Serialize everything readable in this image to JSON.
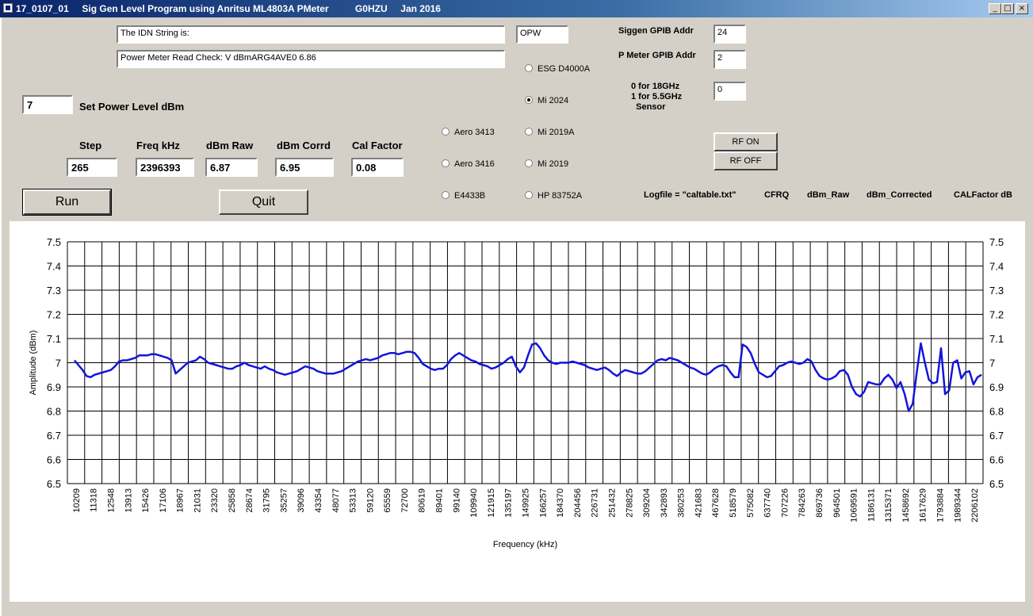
{
  "window": {
    "title": "17_0107_01     Sig Gen Level Program using Anritsu ML4803A PMeter          G0HZU     Jan 2016",
    "minimize": "_",
    "maximize": "□",
    "close": "×"
  },
  "idn_text": "The IDN String is:",
  "opw_text": "OPW",
  "pm_check_text": "Power Meter Read Check: V dBmARG4AVE0  6.86",
  "power_level": {
    "value": "7",
    "label": "Set Power Level dBm"
  },
  "readouts": {
    "step": {
      "label": "Step",
      "value": "265"
    },
    "freq": {
      "label": "Freq kHz",
      "value": "2396393"
    },
    "raw": {
      "label": "dBm Raw",
      "value": "6.87"
    },
    "corrd": {
      "label": "dBm Corrd",
      "value": "6.95"
    },
    "cal": {
      "label": "Cal Factor",
      "value": "0.08"
    }
  },
  "buttons": {
    "run": "Run",
    "quit": "Quit",
    "rf_on": "RF ON",
    "rf_off": "RF OFF"
  },
  "radios": {
    "esg": "ESG D4000A",
    "mi2024": "Mi 2024",
    "mi2019a": "Mi 2019A",
    "mi2019": "Mi 2019",
    "hp83752a": "HP 83752A",
    "aero3413": "Aero 3413",
    "aero3416": "Aero 3416",
    "e4433b": "E4433B",
    "selected": "Mi 2024"
  },
  "gpib": {
    "siggen_label": "Siggen GPIB Addr",
    "siggen_value": "24",
    "pmeter_label": "P Meter GPIB Addr",
    "pmeter_value": "2",
    "sensor_label": "0 for 18GHz\n1 for 5.5GHz\n  Sensor",
    "sensor_value": "0"
  },
  "logfile": {
    "text": "Logfile = \"caltable.txt\"",
    "cfrq": "CFRQ",
    "raw": "dBm_Raw",
    "corrected": "dBm_Corrected",
    "calfactor": "CALFactor dB"
  },
  "chart_data": {
    "type": "line",
    "xlabel": "Frequency (kHz)",
    "ylabel": "Amplitude (dBm)",
    "ylim": [
      6.5,
      7.5
    ],
    "yticks": [
      "7.5",
      "7.4",
      "7.3",
      "7.2",
      "7.1",
      "7",
      "6.9",
      "6.8",
      "6.7",
      "6.6",
      "6.5"
    ],
    "grid": true,
    "series_color": "#1414dc",
    "x_tick_labels": [
      "10209",
      "11318",
      "12548",
      "13913",
      "15426",
      "17106",
      "18967",
      "21031",
      "23320",
      "25858",
      "28674",
      "31795",
      "35257",
      "39096",
      "43354",
      "48077",
      "53313",
      "59120",
      "65559",
      "72700",
      "80619",
      "89401",
      "99140",
      "109940",
      "121915",
      "135197",
      "149925",
      "166257",
      "184370",
      "204456",
      "226731",
      "251432",
      "278825",
      "309204",
      "342893",
      "380253",
      "421683",
      "467628",
      "518579",
      "575082",
      "637740",
      "707226",
      "784263",
      "869736",
      "964501",
      "1069591",
      "1186131",
      "1315371",
      "1458692",
      "1617629",
      "1793884",
      "1989344",
      "2206102"
    ],
    "y_values": [
      7.01,
      6.99,
      6.97,
      6.945,
      6.94,
      6.95,
      6.955,
      6.96,
      6.965,
      6.97,
      6.985,
      7.005,
      7.01,
      7.01,
      7.015,
      7.02,
      7.03,
      7.03,
      7.03,
      7.035,
      7.035,
      7.03,
      7.025,
      7.02,
      7.01,
      6.955,
      6.97,
      6.985,
      7.0,
      7.005,
      7.01,
      7.025,
      7.015,
      7.0,
      6.995,
      6.99,
      6.985,
      6.98,
      6.975,
      6.975,
      6.985,
      6.99,
      7.0,
      6.99,
      6.985,
      6.98,
      6.975,
      6.985,
      6.975,
      6.97,
      6.96,
      6.955,
      6.95,
      6.955,
      6.96,
      6.965,
      6.975,
      6.985,
      6.98,
      6.975,
      6.965,
      6.96,
      6.955,
      6.955,
      6.955,
      6.96,
      6.965,
      6.975,
      6.985,
      6.995,
      7.005,
      7.01,
      7.015,
      7.01,
      7.015,
      7.02,
      7.03,
      7.035,
      7.04,
      7.04,
      7.035,
      7.04,
      7.045,
      7.045,
      7.04,
      7.02,
      6.995,
      6.985,
      6.975,
      6.97,
      6.975,
      6.975,
      6.99,
      7.015,
      7.03,
      7.04,
      7.03,
      7.02,
      7.01,
      7.005,
      6.995,
      6.99,
      6.985,
      6.975,
      6.98,
      6.99,
      7.0,
      7.015,
      7.025,
      6.985,
      6.96,
      6.98,
      7.03,
      7.075,
      7.08,
      7.06,
      7.03,
      7.01,
      7.0,
      6.995,
      7.0,
      7.0,
      7.0,
      7.005,
      7.0,
      6.995,
      6.99,
      6.98,
      6.975,
      6.97,
      6.975,
      6.98,
      6.97,
      6.955,
      6.945,
      6.96,
      6.97,
      6.965,
      6.96,
      6.955,
      6.955,
      6.965,
      6.98,
      6.995,
      7.01,
      7.015,
      7.01,
      7.02,
      7.015,
      7.01,
      7.0,
      6.99,
      6.98,
      6.975,
      6.965,
      6.955,
      6.95,
      6.96,
      6.975,
      6.985,
      6.99,
      6.985,
      6.96,
      6.94,
      6.94,
      7.075,
      7.065,
      7.04,
      6.995,
      6.96,
      6.95,
      6.94,
      6.945,
      6.965,
      6.985,
      6.99,
      7.0,
      7.005,
      7.0,
      6.995,
      7.0,
      7.015,
      7.005,
      6.97,
      6.945,
      6.935,
      6.93,
      6.935,
      6.945,
      6.965,
      6.97,
      6.95,
      6.9,
      6.87,
      6.86,
      6.88,
      6.92,
      6.915,
      6.91,
      6.91,
      6.935,
      6.95,
      6.93,
      6.895,
      6.92,
      6.87,
      6.8,
      6.83,
      6.96,
      7.08,
      7.0,
      6.93,
      6.915,
      6.92,
      7.06,
      6.87,
      6.885,
      7.0,
      7.01,
      6.935,
      6.96,
      6.965,
      6.91,
      6.94,
      6.95
    ]
  }
}
